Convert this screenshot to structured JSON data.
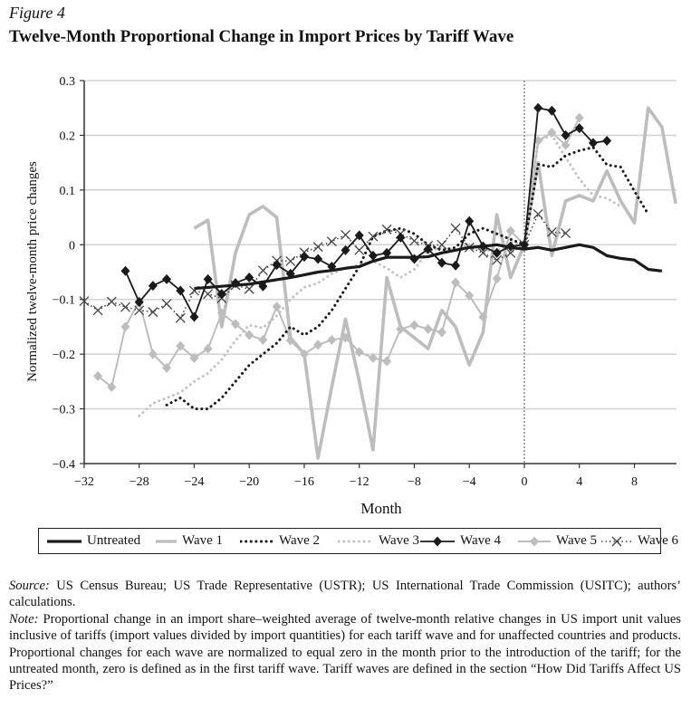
{
  "figure_label": "Figure 4",
  "chart_data": {
    "type": "line",
    "title": "Twelve-Month Proportional Change in Import Prices by Tariff Wave",
    "xlabel": "Month",
    "ylabel": "Normalized twelve-month price changes",
    "xlim": [
      -32,
      11
    ],
    "ylim": [
      -0.4,
      0.3
    ],
    "xticks": [
      -32,
      -28,
      -24,
      -20,
      -16,
      -12,
      -8,
      -4,
      0,
      4,
      8
    ],
    "xtick_labels": [
      "−32",
      "−28",
      "−24",
      "−20",
      "−16",
      "−12",
      "−8",
      "−4",
      "0",
      "4",
      "8"
    ],
    "yticks": [
      -0.4,
      -0.3,
      -0.2,
      -0.1,
      0,
      0.1,
      0.2,
      0.3
    ],
    "ytick_labels": [
      "−0.4",
      "−0.3",
      "−0.2",
      "−0.1",
      "0",
      "0.1",
      "0.2",
      "0.3"
    ],
    "grid": "horizontal",
    "reference_line_x": 0,
    "legend_placement": "bottom",
    "series": [
      {
        "name": "Untreated",
        "color": "#1a1a1a",
        "x_start": -24,
        "values": [
          -0.08,
          -0.078,
          -0.076,
          -0.074,
          -0.072,
          -0.068,
          -0.064,
          -0.06,
          -0.055,
          -0.05,
          -0.047,
          -0.043,
          -0.04,
          -0.03,
          -0.023,
          -0.023,
          -0.023,
          -0.022,
          -0.015,
          -0.01,
          -0.005,
          -0.003,
          0,
          -0.005,
          -0.008,
          -0.005,
          -0.01,
          -0.005,
          0,
          -0.005,
          -0.02,
          -0.025,
          -0.028,
          -0.045,
          -0.048
        ]
      },
      {
        "name": "Wave 1",
        "color": "#bdbdbd",
        "x_start": -24,
        "values": [
          0.03,
          0.045,
          -0.15,
          -0.015,
          0.055,
          0.07,
          0.05,
          -0.17,
          -0.2,
          -0.39,
          -0.26,
          -0.136,
          -0.25,
          -0.375,
          -0.06,
          -0.15,
          -0.17,
          -0.19,
          -0.12,
          -0.15,
          -0.22,
          -0.16,
          0.055,
          -0.06,
          0,
          0.15,
          -0.02,
          0.08,
          0.09,
          0.08,
          0.135,
          0.08,
          0.04,
          0.25,
          0.215,
          0.075
        ]
      },
      {
        "name": "Wave 2",
        "color": "#1a1a1a",
        "x_start": -26,
        "values": [
          -0.293,
          -0.28,
          -0.3,
          -0.3,
          -0.28,
          -0.25,
          -0.22,
          -0.2,
          -0.18,
          -0.15,
          -0.165,
          -0.15,
          -0.12,
          -0.08,
          -0.04,
          0.015,
          0.025,
          0.03,
          0.02,
          0,
          -0.01,
          -0.005,
          0.02,
          0.03,
          0.02,
          0.01,
          0,
          0.147,
          0.142,
          0.163,
          0.172,
          0.178,
          0.146,
          0.142,
          0.098,
          0.056
        ]
      },
      {
        "name": "Wave 3",
        "color": "#c4c4c4",
        "x_start": -28,
        "values": [
          -0.313,
          -0.29,
          -0.28,
          -0.27,
          -0.25,
          -0.235,
          -0.21,
          -0.175,
          -0.147,
          -0.152,
          -0.13,
          -0.1,
          -0.078,
          -0.07,
          -0.053,
          -0.043,
          -0.037,
          -0.03,
          -0.043,
          -0.06,
          -0.045,
          -0.012,
          -0.005,
          -0.01,
          0,
          -0.01,
          -0.01,
          0.005,
          0,
          0.19,
          0.2,
          0.16,
          0.12,
          0.09,
          0.085,
          0.07
        ]
      },
      {
        "name": "Wave 4",
        "color": "#1a1a1a",
        "x_start": -29,
        "values": [
          -0.048,
          -0.105,
          -0.075,
          -0.063,
          -0.084,
          -0.132,
          -0.063,
          -0.09,
          -0.07,
          -0.06,
          -0.076,
          -0.037,
          -0.053,
          -0.022,
          -0.026,
          -0.04,
          -0.01,
          0.017,
          -0.02,
          -0.015,
          0.013,
          -0.026,
          -0.008,
          -0.033,
          -0.038,
          0.043,
          -0.003,
          -0.015,
          -0.003,
          0,
          0.25,
          0.245,
          0.2,
          0.213,
          0.186,
          0.19
        ]
      },
      {
        "name": "Wave 5",
        "color": "#bdbdbd",
        "x_start": -31,
        "values": [
          -0.24,
          -0.26,
          -0.15,
          -0.103,
          -0.2,
          -0.225,
          -0.185,
          -0.207,
          -0.19,
          -0.125,
          -0.145,
          -0.165,
          -0.174,
          -0.113,
          -0.175,
          -0.2,
          -0.183,
          -0.174,
          -0.17,
          -0.196,
          -0.207,
          -0.213,
          -0.154,
          -0.147,
          -0.154,
          -0.16,
          -0.069,
          -0.093,
          -0.132,
          -0.062,
          0.025,
          0,
          0.19,
          0.205,
          0.182,
          0.232
        ]
      },
      {
        "name": "Wave 6",
        "color": "#444444",
        "x_start": -32,
        "values": [
          -0.103,
          -0.12,
          -0.104,
          -0.114,
          -0.12,
          -0.123,
          -0.108,
          -0.134,
          -0.084,
          -0.09,
          -0.098,
          -0.074,
          -0.081,
          -0.047,
          -0.029,
          -0.03,
          -0.014,
          -0.004,
          0.006,
          0.018,
          -0.01,
          0.015,
          0.028,
          0.02,
          0.007,
          -0.002,
          0,
          0.03,
          -0.005,
          -0.015,
          -0.028,
          -0.015,
          0,
          0.056,
          0.023,
          0.021
        ]
      }
    ]
  },
  "notes": {
    "source_label": "Source:",
    "source_text": " US Census Bureau; US Trade Representative (USTR); US International Trade Commission (USITC); authors’ calculations.",
    "note_label": "Note:",
    "note_text": " Proportional change in an import share–weighted average of twelve-month relative changes in US import unit values inclusive of tariffs (import values divided by import quantities) for each tariff wave and for unaffected countries and products. Proportional changes for each wave are normalized to equal zero in the month prior to the introduction of the tariff; for the untreated month, zero is defined as in the first tariff wave. Tariff waves are defined in the section “How Did Tariffs Affect US Prices?”"
  }
}
